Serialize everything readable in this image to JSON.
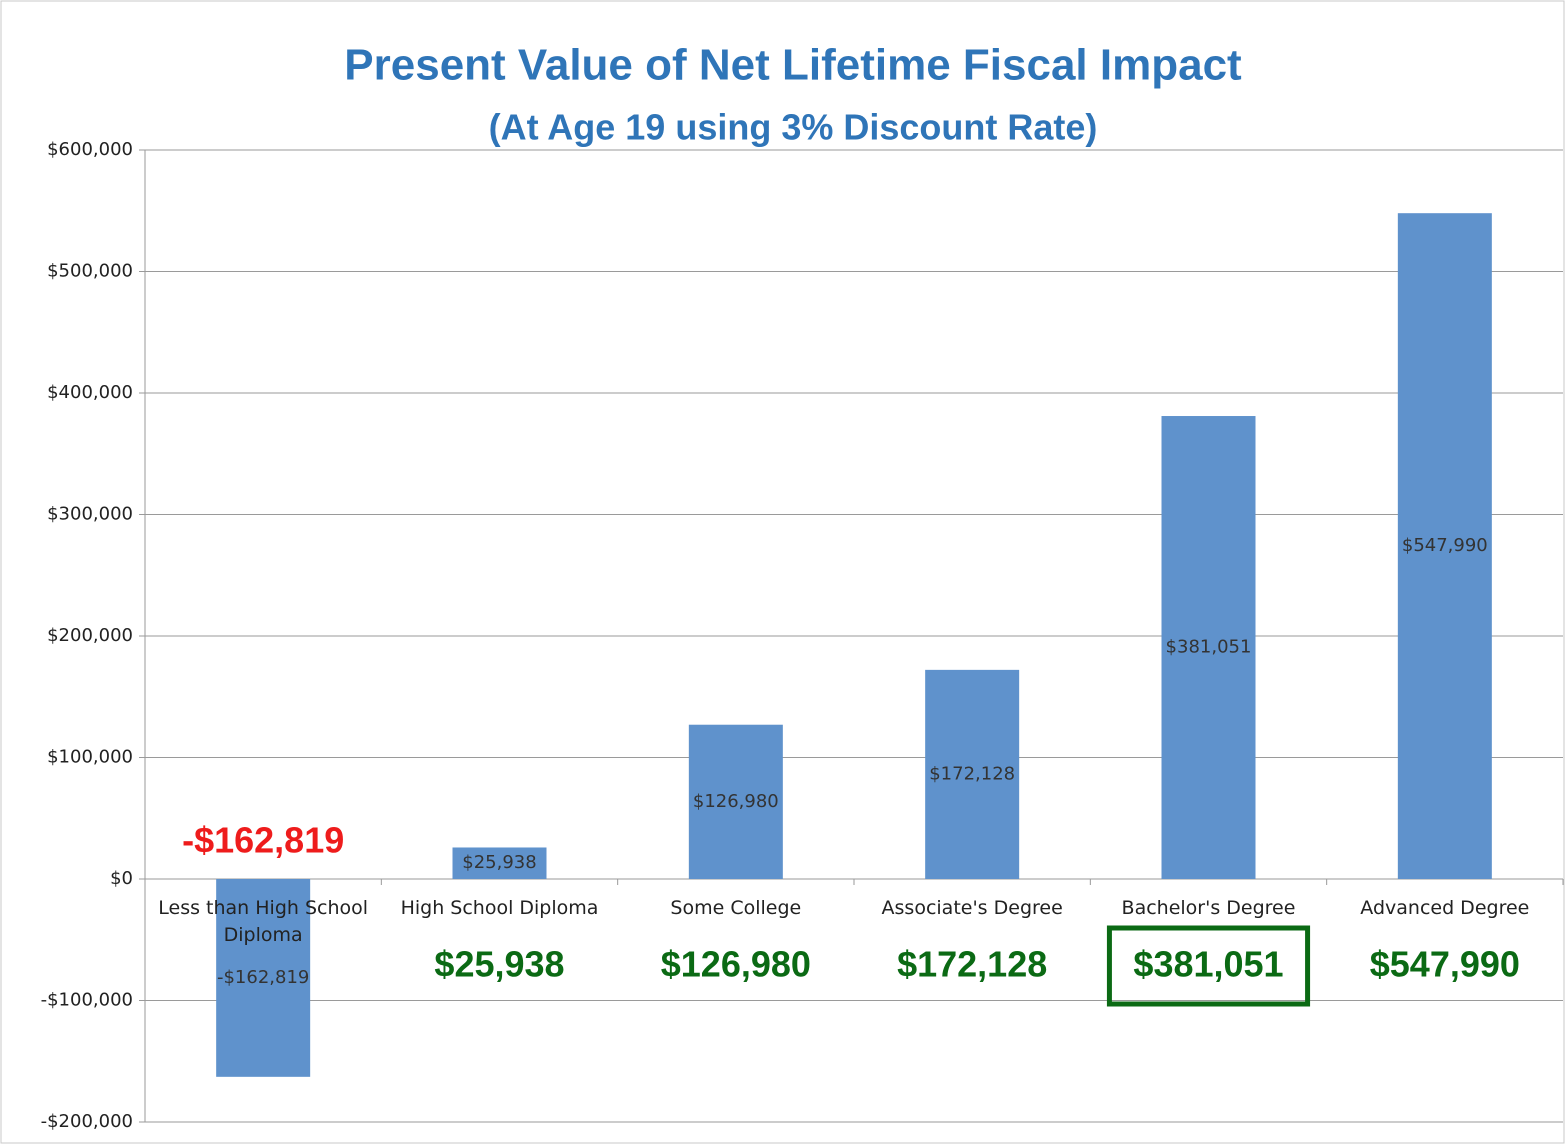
{
  "chart_data": {
    "type": "bar",
    "title": "Present Value of Net Lifetime Fiscal Impact",
    "subtitle": "(At Age 19 using 3% Discount Rate)",
    "categories": [
      "Less than High School Diploma",
      "High School Diploma",
      "Some College",
      "Associate's Degree",
      "Bachelor's Degree",
      "Advanced Degree"
    ],
    "values": [
      -162819,
      25938,
      126980,
      172128,
      381051,
      547990
    ],
    "value_labels": [
      "-$162,819",
      "$25,938",
      "$126,980",
      "$172,128",
      "$381,051",
      "$547,990"
    ],
    "color": "#5f92cc",
    "callout_colors": {
      "negative": "#ee1c1c",
      "positive": "#0b6a14"
    },
    "highlighted_category": 4,
    "ylim": [
      -200000,
      600000
    ],
    "yticks": [
      {
        "value": -200000,
        "label": "-$200,000"
      },
      {
        "value": -100000,
        "label": "-$100,000"
      },
      {
        "value": 0,
        "label": "$0"
      },
      {
        "value": 100000,
        "label": "$100,000"
      },
      {
        "value": 200000,
        "label": "$200,000"
      },
      {
        "value": 300000,
        "label": "$300,000"
      },
      {
        "value": 400000,
        "label": "$400,000"
      },
      {
        "value": 500000,
        "label": "$500,000"
      },
      {
        "value": 600000,
        "label": "$600,000"
      }
    ],
    "grid": true
  }
}
